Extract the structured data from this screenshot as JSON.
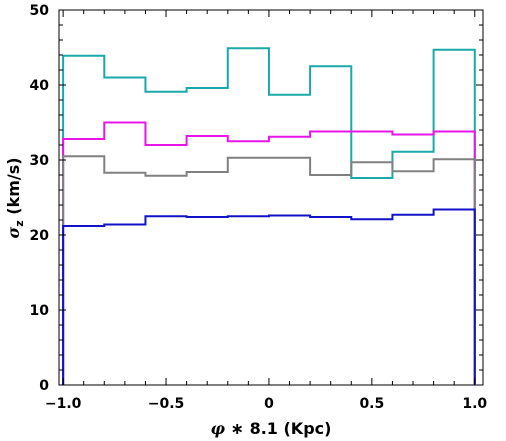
{
  "chart_data": {
    "type": "line",
    "step": true,
    "xlabel": {
      "symbol": "φ",
      "rest": " ∗ 8.1 (Kpc)"
    },
    "ylabel": {
      "symbol": "σ",
      "sub": "z",
      "rest": " (km/s)"
    },
    "xlim": [
      -1.02,
      1.04
    ],
    "ylim": [
      0,
      50
    ],
    "xticks": [
      -1.0,
      -0.5,
      0,
      0.5,
      1.0
    ],
    "xtick_labels": [
      "−1.0",
      "−0.5",
      "0",
      "0.5",
      "1.0"
    ],
    "yticks": [
      0,
      10,
      20,
      30,
      40,
      50
    ],
    "ytick_labels": [
      "0",
      "10",
      "20",
      "30",
      "40",
      "50"
    ],
    "bin_edges": [
      -1.0,
      -0.8,
      -0.6,
      -0.4,
      -0.2,
      0.0,
      0.2,
      0.4,
      0.6,
      0.8,
      1.0
    ],
    "series": [
      {
        "color": "#1aa8a8",
        "values": [
          43.9,
          41.0,
          39.1,
          39.6,
          44.9,
          38.7,
          42.5,
          27.6,
          31.1,
          44.7
        ]
      },
      {
        "color": "#e815e8",
        "values": [
          32.8,
          35.0,
          32.0,
          33.2,
          32.5,
          33.1,
          33.8,
          33.8,
          33.4,
          33.8
        ]
      },
      {
        "color": "#808080",
        "values": [
          30.5,
          28.3,
          27.9,
          28.4,
          30.3,
          30.3,
          28.0,
          29.7,
          28.5,
          30.1
        ]
      },
      {
        "color": "#1212c8",
        "values": [
          21.2,
          21.4,
          22.5,
          22.4,
          22.5,
          22.6,
          22.4,
          22.1,
          22.7,
          23.4
        ]
      }
    ],
    "grid": false,
    "legend": "none"
  }
}
